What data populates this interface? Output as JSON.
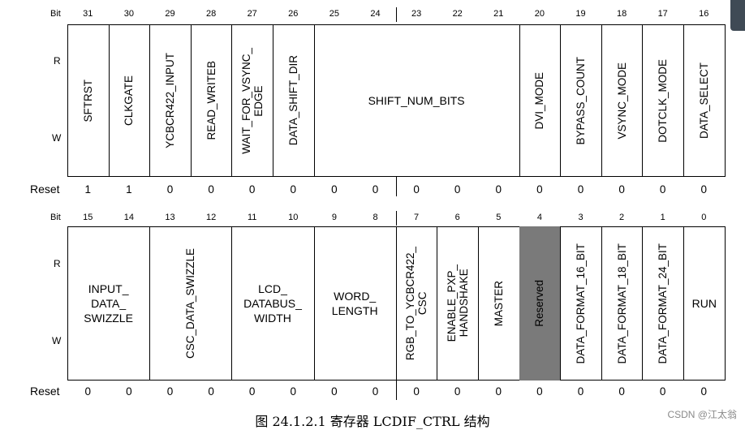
{
  "labels": {
    "bit": "Bit",
    "r": "R",
    "w": "W",
    "reset": "Reset"
  },
  "top": {
    "bits": [
      "31",
      "30",
      "29",
      "28",
      "27",
      "26",
      "25",
      "24",
      "23",
      "22",
      "21",
      "20",
      "19",
      "18",
      "17",
      "16"
    ],
    "resets": [
      "1",
      "1",
      "0",
      "0",
      "0",
      "0",
      "0",
      "0",
      "0",
      "0",
      "0",
      "0",
      "0",
      "0",
      "0",
      "0"
    ],
    "fields": [
      {
        "name": "SFTRST",
        "span": 1,
        "orient": "v"
      },
      {
        "name": "CLKGATE",
        "span": 1,
        "orient": "v"
      },
      {
        "name": "YCBCR422_INPUT",
        "span": 1,
        "orient": "v"
      },
      {
        "name": "READ_WRITEB",
        "span": 1,
        "orient": "v"
      },
      {
        "name": "WAIT_FOR_VSYNC_\nEDGE",
        "span": 1,
        "orient": "v"
      },
      {
        "name": "DATA_SHIFT_DIR",
        "span": 1,
        "orient": "v"
      },
      {
        "name": "SHIFT_NUM_BITS",
        "span": 5,
        "orient": "h"
      },
      {
        "name": "DVI_MODE",
        "span": 1,
        "orient": "v"
      },
      {
        "name": "BYPASS_COUNT",
        "span": 1,
        "orient": "v"
      },
      {
        "name": "VSYNC_MODE",
        "span": 1,
        "orient": "v"
      },
      {
        "name": "DOTCLK_MODE",
        "span": 1,
        "orient": "v"
      },
      {
        "name": "DATA_SELECT",
        "span": 1,
        "orient": "v"
      }
    ]
  },
  "bottom": {
    "bits": [
      "15",
      "14",
      "13",
      "12",
      "11",
      "10",
      "9",
      "8",
      "7",
      "6",
      "5",
      "4",
      "3",
      "2",
      "1",
      "0"
    ],
    "resets": [
      "0",
      "0",
      "0",
      "0",
      "0",
      "0",
      "0",
      "0",
      "0",
      "0",
      "0",
      "0",
      "0",
      "0",
      "0",
      "0"
    ],
    "fields": [
      {
        "name": "INPUT_\nDATA_\nSWIZZLE",
        "span": 2,
        "orient": "h"
      },
      {
        "name": "CSC_DATA_SWIZZLE",
        "span": 2,
        "orient": "v"
      },
      {
        "name": "LCD_\nDATABUS_\nWIDTH",
        "span": 2,
        "orient": "h"
      },
      {
        "name": "WORD_\nLENGTH",
        "span": 2,
        "orient": "h"
      },
      {
        "name": "RGB_TO_YCBCR422_\nCSC",
        "span": 1,
        "orient": "v"
      },
      {
        "name": "ENABLE_PXP_\nHANDSHAKE",
        "span": 1,
        "orient": "v"
      },
      {
        "name": "MASTER",
        "span": 1,
        "orient": "v"
      },
      {
        "name": "Reserved",
        "span": 1,
        "orient": "v",
        "reserved": true
      },
      {
        "name": "DATA_FORMAT_16_BIT",
        "span": 1,
        "orient": "v"
      },
      {
        "name": "DATA_FORMAT_18_BIT",
        "span": 1,
        "orient": "v"
      },
      {
        "name": "DATA_FORMAT_24_BIT",
        "span": 1,
        "orient": "v"
      },
      {
        "name": "RUN",
        "span": 1,
        "orient": "h"
      }
    ]
  },
  "caption": "图 24.1.2.1 寄存器 LCDIF_CTRL 结构",
  "watermark": "CSDN @江太翁"
}
